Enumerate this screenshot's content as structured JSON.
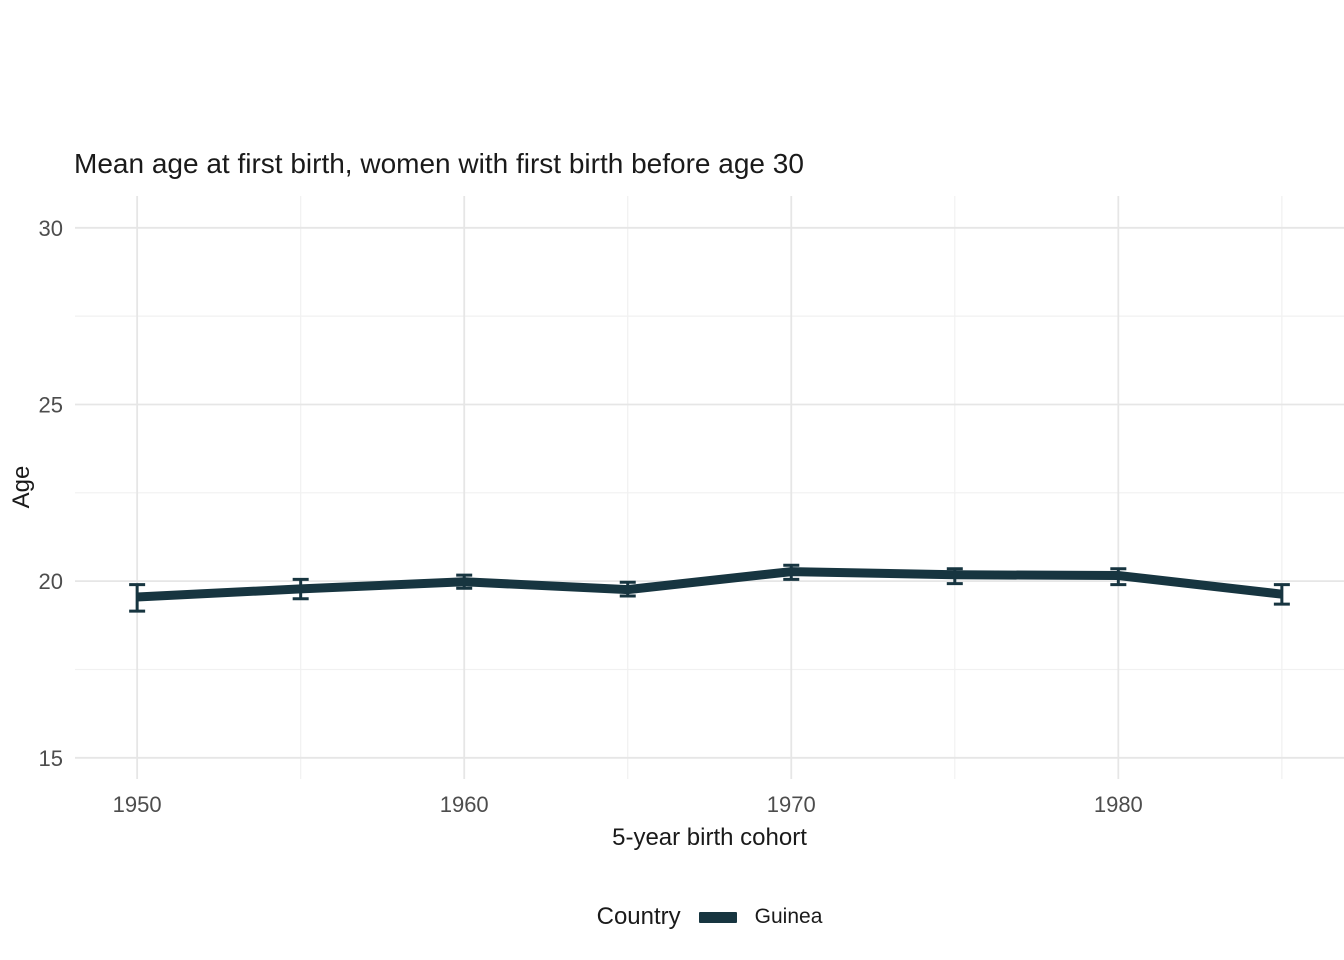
{
  "colors": {
    "series_line": "#173540",
    "grid_major": "#e6e6e6",
    "grid_minor": "#f1f1f1",
    "tick_label": "#4d4d4d",
    "text": "#1a1a1a",
    "background": "#ffffff"
  },
  "chart_data": {
    "type": "line",
    "title": "Mean age at first birth, women with first birth before age 30",
    "xlabel": "5-year birth cohort",
    "ylabel": "Age",
    "grid": true,
    "legend_title": "Country",
    "legend_position": "bottom",
    "x_domain": [
      1948.1,
      1986.9
    ],
    "y_domain": [
      14.4,
      30.9
    ],
    "x_ticks": [
      1950,
      1960,
      1970,
      1980
    ],
    "x_minor_ticks": [
      1955,
      1965,
      1975,
      1985
    ],
    "y_ticks": [
      15,
      20,
      25,
      30
    ],
    "y_minor_ticks": [
      17.5,
      22.5,
      27.5
    ],
    "series": [
      {
        "name": "Guinea",
        "color": "#173540",
        "x": [
          1950,
          1955,
          1960,
          1965,
          1970,
          1975,
          1980,
          1985
        ],
        "y": [
          19.55,
          19.78,
          19.98,
          19.76,
          20.27,
          20.18,
          20.16,
          19.63
        ],
        "ci_low": [
          19.15,
          19.5,
          19.8,
          19.58,
          20.05,
          19.93,
          19.9,
          19.35
        ],
        "ci_high": [
          19.9,
          20.05,
          20.17,
          19.97,
          20.45,
          20.35,
          20.35,
          19.9
        ]
      }
    ]
  }
}
